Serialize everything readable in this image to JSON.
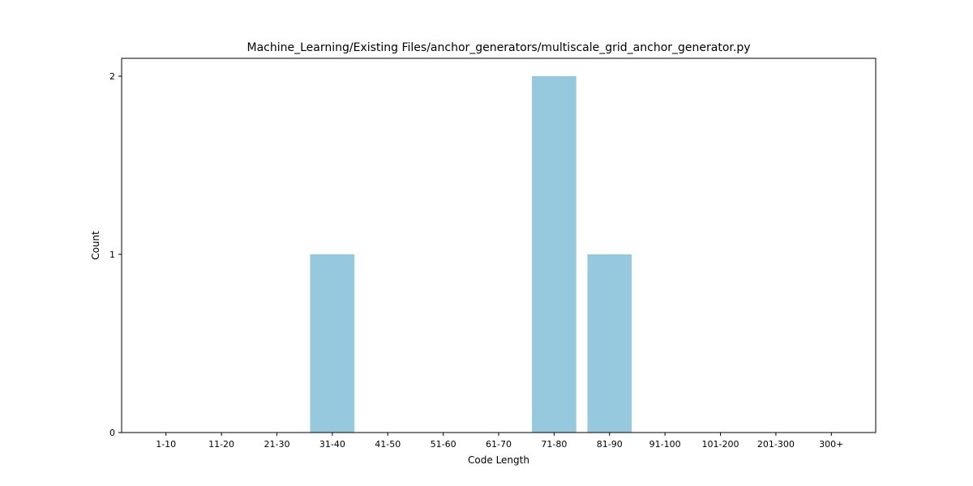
{
  "chart_data": {
    "type": "bar",
    "title": "Machine_Learning/Existing Files/anchor_generators/multiscale_grid_anchor_generator.py",
    "xlabel": "Code Length",
    "ylabel": "Count",
    "categories": [
      "1-10",
      "11-20",
      "21-30",
      "31-40",
      "41-50",
      "51-60",
      "61-70",
      "71-80",
      "81-90",
      "91-100",
      "101-200",
      "201-300",
      "300+"
    ],
    "values": [
      0,
      0,
      0,
      1,
      0,
      0,
      0,
      2,
      1,
      0,
      0,
      0,
      0
    ],
    "ylim": [
      0,
      2.1
    ],
    "yticks": [
      0,
      1,
      2
    ],
    "grid": false,
    "bar_color": "#96c9de"
  }
}
